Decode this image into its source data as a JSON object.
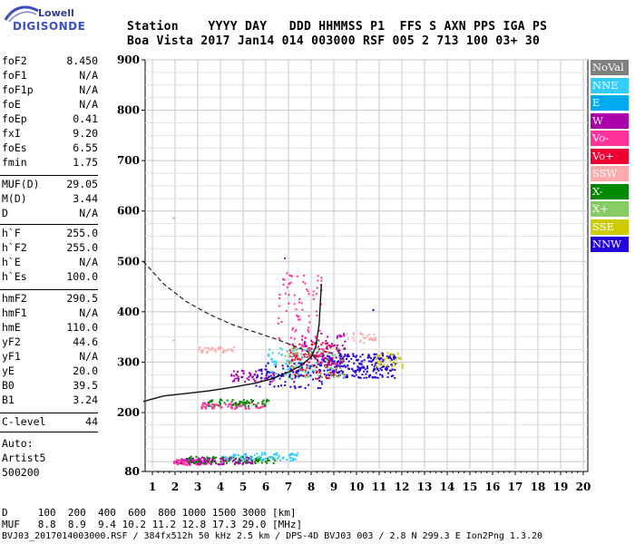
{
  "logo": {
    "line1": "Lowell",
    "line2": "DIGISONDE"
  },
  "header": {
    "names": "Station    YYYY DAY   DDD HHMMSS P1  FFS S AXN PPS IGA PS",
    "values": "Boa Vista 2017 Jan14 014 003000 RSF 005 2 713 100 03+ 30"
  },
  "params": {
    "group1": [
      {
        "name": "foF2",
        "value": "8.450"
      },
      {
        "name": "foF1",
        "value": "N/A"
      },
      {
        "name": "foF1p",
        "value": "N/A"
      },
      {
        "name": "foE",
        "value": "N/A"
      },
      {
        "name": "foEp",
        "value": "0.41"
      },
      {
        "name": "fxI",
        "value": "9.20"
      },
      {
        "name": "foEs",
        "value": "6.55"
      },
      {
        "name": "fmin",
        "value": "1.75"
      }
    ],
    "group2": [
      {
        "name": "MUF(D)",
        "value": "29.05"
      },
      {
        "name": "M(D)",
        "value": "3.44"
      },
      {
        "name": "D",
        "value": "N/A"
      }
    ],
    "group3": [
      {
        "name": "h`F",
        "value": "255.0"
      },
      {
        "name": "h`F2",
        "value": "255.0"
      },
      {
        "name": "h`E",
        "value": "N/A"
      },
      {
        "name": "h`Es",
        "value": "100.0"
      }
    ],
    "group4": [
      {
        "name": "hmF2",
        "value": "290.5"
      },
      {
        "name": "hmF1",
        "value": "N/A"
      },
      {
        "name": "hmE",
        "value": "110.0"
      },
      {
        "name": "yF2",
        "value": "44.6"
      },
      {
        "name": "yF1",
        "value": "N/A"
      },
      {
        "name": "yE",
        "value": "20.0"
      },
      {
        "name": "B0",
        "value": "39.5"
      },
      {
        "name": "B1",
        "value": "3.24"
      }
    ],
    "group5": [
      {
        "name": "C-level",
        "value": "44"
      }
    ],
    "auto": [
      "Auto:",
      "Artist5",
      "500200"
    ]
  },
  "footer": {
    "d_row": "D     100  200  400  600  800 1000 1500 3000 [km]",
    "muf_row": "MUF   8.8  8.9  9.4 10.2 11.2 12.8 17.3 29.0 [MHz]",
    "file_row": "BVJ03_2017014003000.RSF / 384fx512h 50 kHz 2.5 km / DPS-4D BVJ03 003 / 2.8 N 299.3 E Ion2Png 1.3.20"
  },
  "legend": [
    {
      "label": "NoVal",
      "bg": "#808080",
      "fg": "#ffffff"
    },
    {
      "label": "NNE",
      "bg": "#33ccff",
      "fg": "#ffffff"
    },
    {
      "label": "E",
      "bg": "#00aaee",
      "fg": "#ffffff"
    },
    {
      "label": "W",
      "bg": "#aa00aa",
      "fg": "#ffffff"
    },
    {
      "label": "Vo-",
      "bg": "#ff3399",
      "fg": "#ffffff"
    },
    {
      "label": "Vo+",
      "bg": "#ee0033",
      "fg": "#ffffff"
    },
    {
      "label": "SSW",
      "bg": "#ffaaaa",
      "fg": "#ffffff"
    },
    {
      "label": "X-",
      "bg": "#008800",
      "fg": "#ffffff"
    },
    {
      "label": "X+",
      "bg": "#88cc66",
      "fg": "#ffffff"
    },
    {
      "label": "SSE",
      "bg": "#cccc00",
      "fg": "#ffffff"
    },
    {
      "label": "NNW",
      "bg": "#2200dd",
      "fg": "#ffffff"
    }
  ],
  "chart_data": {
    "type": "scatter",
    "x_ticks": [
      "1",
      "2",
      "3",
      "4",
      "5",
      "6",
      "7",
      "8",
      "9",
      "10",
      "11",
      "12",
      "13",
      "14",
      "15",
      "16",
      "17",
      "18",
      "19",
      "20"
    ],
    "y_ticks": [
      "80",
      "200",
      "300",
      "400",
      "500",
      "600",
      "700",
      "800",
      "900"
    ],
    "xlim": [
      1,
      20
    ],
    "ylim": [
      80,
      900
    ],
    "grid": true,
    "legend_position": "right",
    "profile_curve": [
      [
        0.6,
        500
      ],
      [
        1.5,
        455
      ],
      [
        2.5,
        420
      ],
      [
        3.5,
        395
      ],
      [
        4.5,
        375
      ],
      [
        5.5,
        360
      ],
      [
        6.5,
        345
      ],
      [
        7.2,
        333
      ],
      [
        7.8,
        322
      ],
      [
        8.3,
        305
      ]
    ],
    "trace_curve": [
      [
        0.6,
        222
      ],
      [
        1.5,
        233
      ],
      [
        2.5,
        238
      ],
      [
        3.5,
        243
      ],
      [
        4.5,
        250
      ],
      [
        5.5,
        258
      ],
      [
        6.2,
        266
      ],
      [
        7.0,
        280
      ],
      [
        7.5,
        292
      ],
      [
        8.0,
        310
      ],
      [
        8.2,
        330
      ],
      [
        8.35,
        375
      ],
      [
        8.45,
        455
      ]
    ],
    "clusters": [
      {
        "series": "Vo-",
        "color": "#ff3399",
        "x": [
          1.9,
          3.6
        ],
        "y": [
          95,
          106
        ],
        "n": 90
      },
      {
        "series": "X-",
        "color": "#008800",
        "x": [
          2.5,
          6.4
        ],
        "y": [
          98,
          112
        ],
        "n": 110
      },
      {
        "series": "W",
        "color": "#aa00aa",
        "x": [
          2.0,
          5.5
        ],
        "y": [
          96,
          110
        ],
        "n": 80
      },
      {
        "series": "NNE",
        "color": "#33ccff",
        "x": [
          4.2,
          7.4
        ],
        "y": [
          104,
          120
        ],
        "n": 80
      },
      {
        "series": "Vo-",
        "color": "#ff3399",
        "x": [
          3.1,
          6.0
        ],
        "y": [
          209,
          222
        ],
        "n": 80
      },
      {
        "series": "X-",
        "color": "#008800",
        "x": [
          3.4,
          6.1
        ],
        "y": [
          214,
          228
        ],
        "n": 60
      },
      {
        "series": "SSW",
        "color": "#ffaaaa",
        "x": [
          3.0,
          4.6
        ],
        "y": [
          320,
          332
        ],
        "n": 40
      },
      {
        "series": "W",
        "color": "#aa00aa",
        "x": [
          4.4,
          6.4
        ],
        "y": [
          262,
          286
        ],
        "n": 60
      },
      {
        "series": "NNE",
        "color": "#33ccff",
        "x": [
          6.0,
          8.2
        ],
        "y": [
          270,
          330
        ],
        "n": 90
      },
      {
        "series": "NNW",
        "color": "#2200dd",
        "x": [
          8.3,
          11.7
        ],
        "y": [
          270,
          320
        ],
        "n": 260
      },
      {
        "series": "SSE",
        "color": "#cccc00",
        "x": [
          10.8,
          12.0
        ],
        "y": [
          288,
          320
        ],
        "n": 40
      },
      {
        "series": "Vo+",
        "color": "#ee0033",
        "x": [
          7.0,
          9.2
        ],
        "y": [
          268,
          340
        ],
        "n": 120
      },
      {
        "series": "X+",
        "color": "#88cc66",
        "x": [
          6.8,
          9.5
        ],
        "y": [
          270,
          330
        ],
        "n": 90
      },
      {
        "series": "SSW",
        "color": "#ffaaaa",
        "x": [
          9.5,
          10.8
        ],
        "y": [
          340,
          360
        ],
        "n": 30
      },
      {
        "series": "W",
        "color": "#aa00aa",
        "x": [
          7.5,
          9.5
        ],
        "y": [
          290,
          360
        ],
        "n": 70
      },
      {
        "series": "Vo-",
        "color": "#ff3399",
        "x": [
          6.5,
          8.5
        ],
        "y": [
          300,
          480
        ],
        "n": 90
      },
      {
        "series": "NNW",
        "color": "#2200dd",
        "x": [
          5.5,
          8.5
        ],
        "y": [
          250,
          300
        ],
        "n": 80
      }
    ],
    "singles": [
      {
        "color": "#88cc66",
        "x": 1.9,
        "y": 588
      },
      {
        "color": "#aa00aa",
        "x": 6.8,
        "y": 508
      },
      {
        "color": "#2200dd",
        "x": 10.7,
        "y": 405
      },
      {
        "color": "#ffaaaa",
        "x": 1.9,
        "y": 345
      }
    ]
  }
}
